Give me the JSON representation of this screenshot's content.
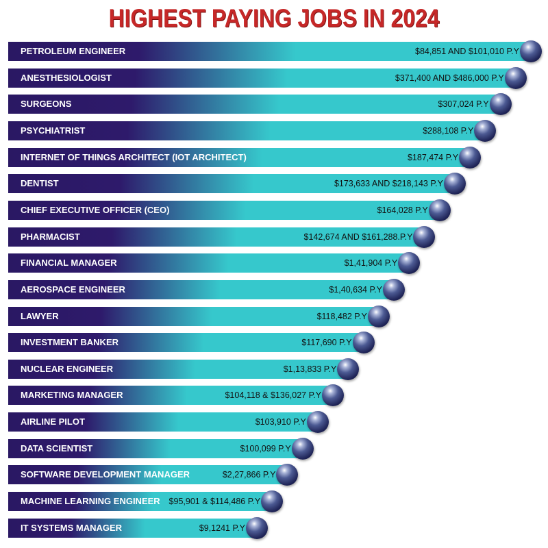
{
  "title": "HIGHEST PAYING JOBS IN 2024",
  "colors": {
    "title": "#c62828",
    "bar_dark": "#2e1a6b",
    "bar_light": "#36c8cc",
    "orb": "#1f2457"
  },
  "chart_data": {
    "type": "bar",
    "orientation": "horizontal",
    "title": "HIGHEST PAYING JOBS IN 2024",
    "categories": [
      "PETROLEUM ENGINEER",
      "ANESTHESIOLOGIST",
      "SURGEONS",
      "PSYCHIATRIST",
      "INTERNET OF THINGS ARCHITECT (IOT ARCHITECT)",
      "DENTIST",
      "CHIEF EXECUTIVE OFFICER (CEO)",
      "PHARMACIST",
      "FINANCIAL MANAGER",
      "AEROSPACE ENGINEER",
      "LAWYER",
      "INVESTMENT BANKER",
      "NUCLEAR ENGINEER",
      "MARKETING MANAGER",
      "AIRLINE PILOT",
      "DATA SCIENTIST",
      "SOFTWARE DEVELOPMENT MANAGER",
      "MACHINE LEARNING ENGINEER",
      "IT SYSTEMS MANAGER"
    ],
    "value_labels": [
      "$84,851 AND $101,010 P.Y",
      "$371,400 AND $486,000 P.Y",
      "$307,024 P.Y",
      "$288,108 P.Y",
      "$187,474 P.Y",
      "$173,633 AND $218,143 P.Y",
      "$164,028 P.Y",
      "$142,674 AND $161,288.P.Y",
      "$1,41,904 P.Y",
      "$1,40,634 P.Y",
      "$118,482 P.Y",
      "$117,690 P.Y",
      "$1,13,833 P.Y",
      "$104,118 & $136,027 P.Y",
      "$103,910 P.Y",
      "$100,099 P.Y",
      "$2,27,866 P.Y",
      "$95,901 & $114,486 P.Y",
      "$9,1241 P.Y"
    ],
    "bar_length_rank": [
      19,
      18,
      17,
      16,
      15,
      14,
      13,
      12,
      11,
      10,
      9,
      8,
      7,
      6,
      5,
      4,
      3,
      2,
      1
    ]
  }
}
